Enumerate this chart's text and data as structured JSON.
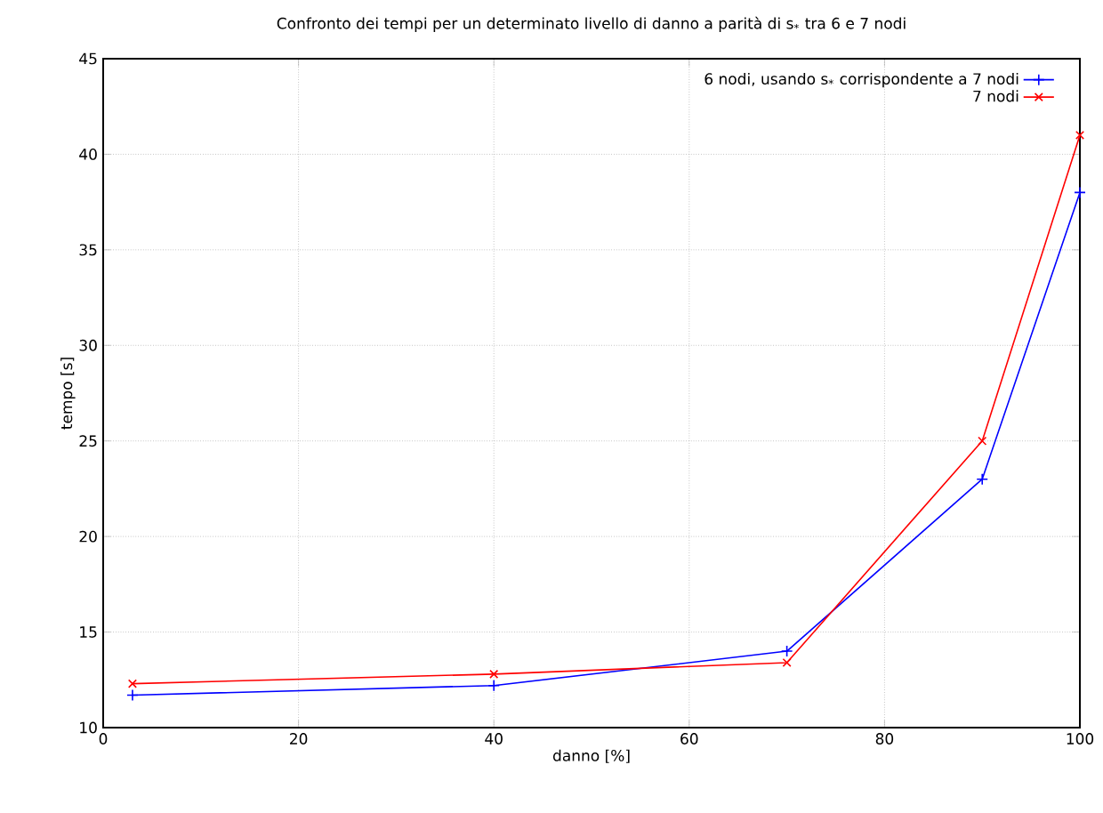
{
  "chart_data": {
    "type": "line",
    "title": "Confronto dei tempi per un determinato livello di danno a parità di s$_{*}$ tra 6 e 7 nodi",
    "xlabel": "danno [%]",
    "ylabel": "tempo [s]",
    "x": [
      3,
      40,
      70,
      90,
      100
    ],
    "series": [
      {
        "name": "6 nodi, usando s$_{*}$ corrispondente a 7 nodi",
        "color": "#0000ff",
        "marker": "cross",
        "values": [
          11.7,
          12.2,
          14.0,
          23,
          38
        ]
      },
      {
        "name": "7 nodi",
        "color": "#ff0000",
        "marker": "x",
        "values": [
          12.3,
          12.8,
          13.4,
          25,
          41
        ]
      }
    ],
    "xlim": [
      0,
      100
    ],
    "ylim": [
      10,
      45
    ],
    "xticks": [
      0,
      20,
      40,
      60,
      80,
      100
    ],
    "yticks": [
      10,
      15,
      20,
      25,
      30,
      35,
      40,
      45
    ],
    "grid": true,
    "legend": "top right",
    "line_style": "solid"
  }
}
